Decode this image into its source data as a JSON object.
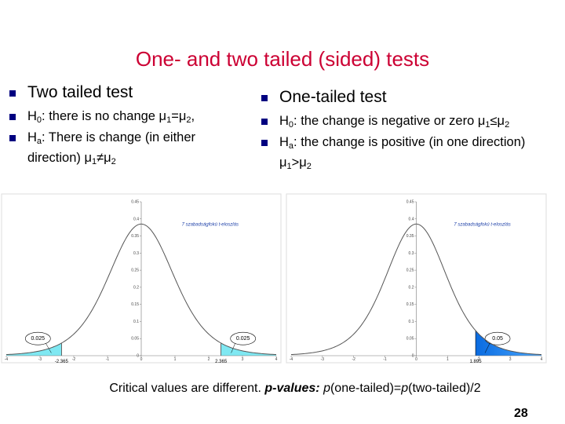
{
  "title": "One- and two tailed (sided) tests",
  "left": {
    "heading": "Two tailed test",
    "bullets": [
      [
        "H",
        "0",
        ": there is no change μ",
        "1",
        "=μ",
        "2",
        ","
      ],
      [
        "H",
        "a",
        ": There is change (in either direction) μ",
        "1",
        "≠μ",
        "2"
      ]
    ]
  },
  "right": {
    "heading": "One-tailed test",
    "bullets": [
      [
        "H",
        "0",
        ": the change is negative or zero μ",
        "1",
        "≤μ",
        "2"
      ],
      [
        "H",
        "a",
        ": the change is positive (in one direction)  μ",
        "1",
        ">μ",
        "2"
      ]
    ]
  },
  "figures": [
    {
      "caption": "7 szabadságfokú t-eloszlás",
      "critical_values": [
        -2.365,
        2.365
      ],
      "tail_areas": [
        0.025,
        0.025
      ],
      "yticks": [
        0,
        0.05,
        0.1,
        0.15,
        0.2,
        0.25,
        0.3,
        0.35,
        0.4,
        0.45
      ],
      "xticks": [
        -4,
        -3,
        -2,
        -1,
        0,
        1,
        2,
        3,
        4
      ]
    },
    {
      "caption": "7 szabadságfokú t-eloszlás",
      "critical_values": [
        1.895
      ],
      "tail_areas": [
        0.05
      ],
      "yticks": [
        0,
        0.05,
        0.1,
        0.15,
        0.2,
        0.25,
        0.3,
        0.35,
        0.4,
        0.45
      ],
      "xticks": [
        -4,
        -3,
        -2,
        -1,
        0,
        1,
        2,
        3,
        4
      ]
    }
  ],
  "footnote": [
    "Critical values are different. ",
    "p-values:",
    " ",
    "p",
    "(one-tailed)=",
    "p",
    "(two-tailed)/2"
  ],
  "page_number": "28"
}
